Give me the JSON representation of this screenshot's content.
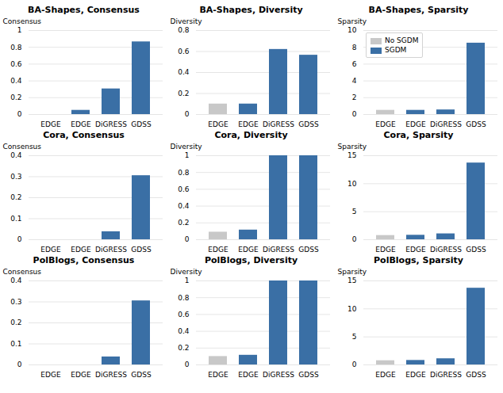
{
  "chart_data": [
    {
      "type": "bar",
      "title": "BA-Shapes, Consensus",
      "ylabel": "Consensus",
      "categories": [
        "EDGE",
        "EDGE",
        "DiGRESS",
        "GDSS"
      ],
      "values": [
        0.0,
        0.05,
        0.305,
        0.865
      ],
      "colors": [
        "#c8c8c8",
        "#3a6fa5",
        "#3a6fa5",
        "#3a6fa5"
      ],
      "ylim": [
        0,
        1
      ],
      "yticks": [
        0,
        0.2,
        0.4,
        0.6,
        0.8,
        1
      ],
      "grid": true
    },
    {
      "type": "bar",
      "title": "BA-Shapes, Diversity",
      "ylabel": "Diversity",
      "categories": [
        "EDGE",
        "EDGE",
        "DiGRESS",
        "GDSS"
      ],
      "values": [
        0.1,
        0.1,
        0.62,
        0.565
      ],
      "colors": [
        "#c8c8c8",
        "#3a6fa5",
        "#3a6fa5",
        "#3a6fa5"
      ],
      "ylim": [
        0,
        0.8
      ],
      "yticks": [
        0,
        0.2,
        0.4,
        0.6,
        0.8
      ],
      "grid": true
    },
    {
      "type": "bar",
      "title": "BA-Shapes, Sparsity",
      "ylabel": "Sparsity",
      "categories": [
        "EDGE",
        "EDGE",
        "DiGRESS",
        "GDSS"
      ],
      "values": [
        0.5,
        0.5,
        0.55,
        8.5
      ],
      "colors": [
        "#c8c8c8",
        "#3a6fa5",
        "#3a6fa5",
        "#3a6fa5"
      ],
      "ylim": [
        0,
        10
      ],
      "yticks": [
        0,
        2,
        4,
        6,
        8,
        10
      ],
      "grid": true,
      "legend": "upper left",
      "legend_labels": [
        "No SGDM",
        "SGDM"
      ],
      "legend_colors": [
        "#c8c8c8",
        "#3a6fa5"
      ]
    },
    {
      "type": "bar",
      "title": "Cora, Consensus",
      "ylabel": "Consensus",
      "categories": [
        "EDGE",
        "EDGE",
        "DiGRESS",
        "GDSS"
      ],
      "values": [
        0.0,
        0.0,
        0.038,
        0.305
      ],
      "colors": [
        "#c8c8c8",
        "#3a6fa5",
        "#3a6fa5",
        "#3a6fa5"
      ],
      "ylim": [
        0,
        0.4
      ],
      "yticks": [
        0,
        0.1,
        0.2,
        0.3,
        0.4
      ],
      "grid": true
    },
    {
      "type": "bar",
      "title": "Cora, Diversity",
      "ylabel": "Diversity",
      "categories": [
        "EDGE",
        "EDGE",
        "DiGRESS",
        "GDSS"
      ],
      "values": [
        0.09,
        0.115,
        1.0,
        1.0
      ],
      "colors": [
        "#c8c8c8",
        "#3a6fa5",
        "#3a6fa5",
        "#3a6fa5"
      ],
      "ylim": [
        0,
        1
      ],
      "yticks": [
        0,
        0.2,
        0.4,
        0.6,
        0.8,
        1
      ],
      "grid": true
    },
    {
      "type": "bar",
      "title": "Cora, Sparsity",
      "ylabel": "Sparsity",
      "categories": [
        "EDGE",
        "EDGE",
        "DiGRESS",
        "GDSS"
      ],
      "values": [
        0.75,
        0.8,
        1.05,
        13.7
      ],
      "colors": [
        "#c8c8c8",
        "#3a6fa5",
        "#3a6fa5",
        "#3a6fa5"
      ],
      "ylim": [
        0,
        15
      ],
      "yticks": [
        0,
        5,
        10,
        15
      ],
      "grid": true
    },
    {
      "type": "bar",
      "title": "PolBlogs, Consensus",
      "ylabel": "Consensus",
      "categories": [
        "EDGE",
        "EDGE",
        "DiGRESS",
        "GDSS"
      ],
      "values": [
        0.0,
        0.0,
        0.038,
        0.305
      ],
      "colors": [
        "#c8c8c8",
        "#3a6fa5",
        "#3a6fa5",
        "#3a6fa5"
      ],
      "ylim": [
        0,
        0.4
      ],
      "yticks": [
        0,
        0.1,
        0.2,
        0.3,
        0.4
      ],
      "grid": true
    },
    {
      "type": "bar",
      "title": "PolBlogs, Diversity",
      "ylabel": "Diversity",
      "categories": [
        "EDGE",
        "EDGE",
        "DiGRESS",
        "GDSS"
      ],
      "values": [
        0.1,
        0.115,
        1.0,
        1.0
      ],
      "colors": [
        "#c8c8c8",
        "#3a6fa5",
        "#3a6fa5",
        "#3a6fa5"
      ],
      "ylim": [
        0,
        1
      ],
      "yticks": [
        0,
        0.2,
        0.4,
        0.6,
        0.8,
        1
      ],
      "grid": true
    },
    {
      "type": "bar",
      "title": "PolBlogs, Sparsity",
      "ylabel": "Sparsity",
      "categories": [
        "EDGE",
        "EDGE",
        "DiGRESS",
        "GDSS"
      ],
      "values": [
        0.75,
        0.8,
        1.1,
        13.7
      ],
      "colors": [
        "#c8c8c8",
        "#3a6fa5",
        "#3a6fa5",
        "#3a6fa5"
      ],
      "ylim": [
        0,
        15
      ],
      "yticks": [
        0,
        5,
        10,
        15
      ],
      "grid": true
    }
  ]
}
